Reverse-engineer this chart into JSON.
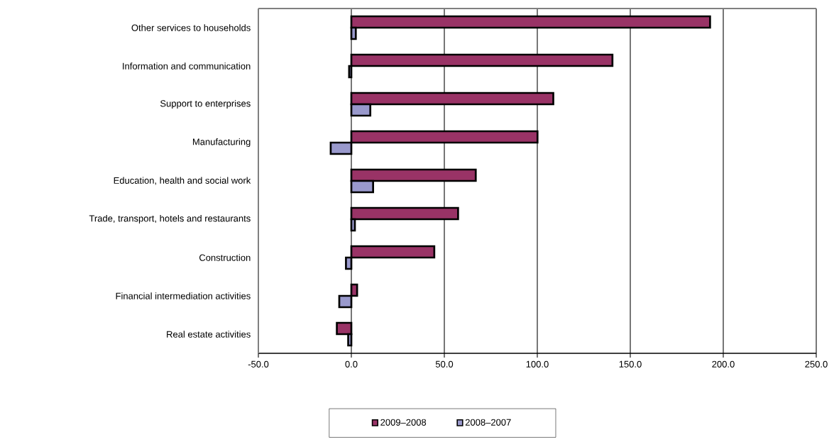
{
  "chart_data": {
    "type": "bar",
    "orientation": "horizontal",
    "categories": [
      "Other services to households",
      "Information and communication",
      "Support to enterprises",
      "Manufacturing",
      "Education, health and social work",
      "Trade, transport, hotels and restaurants",
      "Construction",
      "Financial intermediation activities",
      "Real estate activities"
    ],
    "series": [
      {
        "name": "2009–2008",
        "color": "#993366",
        "values": [
          192.9,
          140.4,
          108.6,
          100.1,
          66.9,
          57.4,
          44.6,
          3.1,
          -7.8
        ]
      },
      {
        "name": "2008–2007",
        "color": "#9999cc",
        "values": [
          2.4,
          -1.2,
          10.2,
          -11.1,
          11.7,
          1.9,
          -2.9,
          -6.5,
          -1.7
        ]
      }
    ],
    "xlim": [
      -50,
      250
    ],
    "xticks": [
      {
        "value": -50,
        "label": "-50.0"
      },
      {
        "value": 0,
        "label": "0.0"
      },
      {
        "value": 50,
        "label": "50.0"
      },
      {
        "value": 100,
        "label": "100.0"
      },
      {
        "value": 150,
        "label": "150.0"
      },
      {
        "value": 200,
        "label": "200.0"
      },
      {
        "value": 250,
        "label": "250.0"
      }
    ],
    "grid": "x",
    "legend": "bottom"
  }
}
